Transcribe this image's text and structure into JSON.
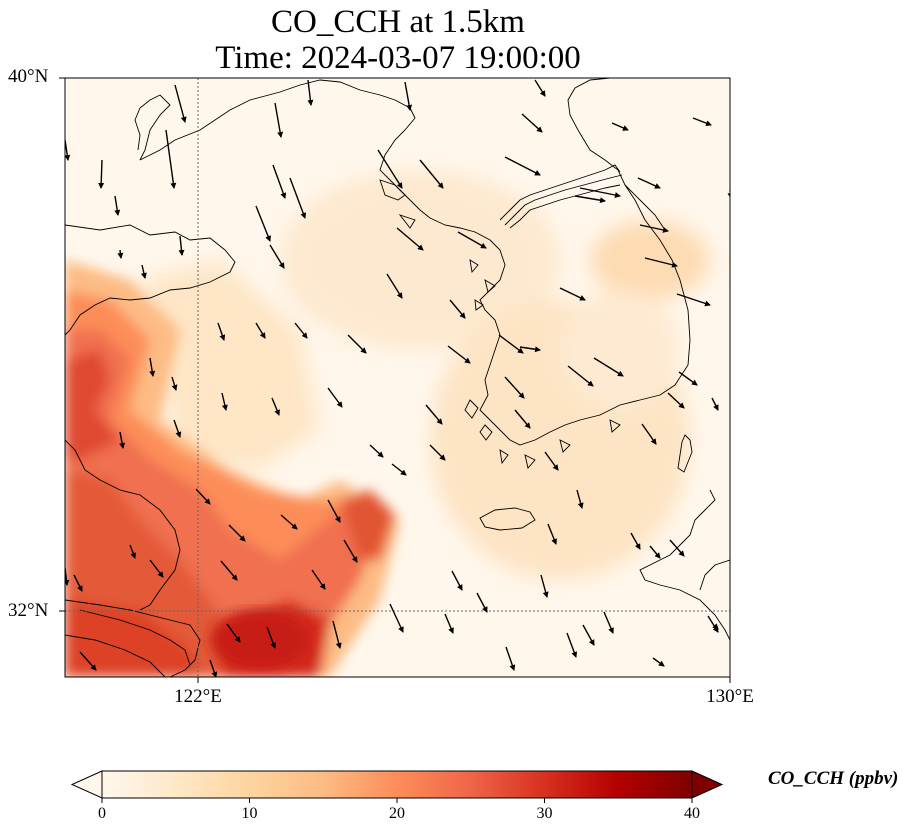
{
  "title": {
    "line1": "CO_CCH at 1.5km",
    "line2": "Time: 2024-03-07 19:00:00"
  },
  "map": {
    "lat_labels": [
      {
        "value": 40,
        "text": "40°N"
      },
      {
        "value": 32,
        "text": "32°N"
      }
    ],
    "lon_labels": [
      {
        "value": 122,
        "text": "122°E"
      },
      {
        "value": 130,
        "text": "130°E"
      }
    ],
    "extent": {
      "lon_min": 120,
      "lon_max": 130,
      "lat_min": 31,
      "lat_max": 40
    },
    "gridlines": {
      "lons": [
        122
      ],
      "lats": [
        32
      ],
      "style": "dotted"
    },
    "wind_vectors": "shown",
    "coastlines": "shown"
  },
  "colorbar": {
    "label": "CO_CCH (ppbv)",
    "ticks": [
      "0",
      "10",
      "20",
      "30",
      "40"
    ],
    "min": 0,
    "max": 40,
    "colormap": "OrRd",
    "extend": "both"
  },
  "colors": {
    "low": "#fff7ec",
    "mid": "#fdbb84",
    "high": "#d7301f",
    "max": "#7f0000"
  }
}
